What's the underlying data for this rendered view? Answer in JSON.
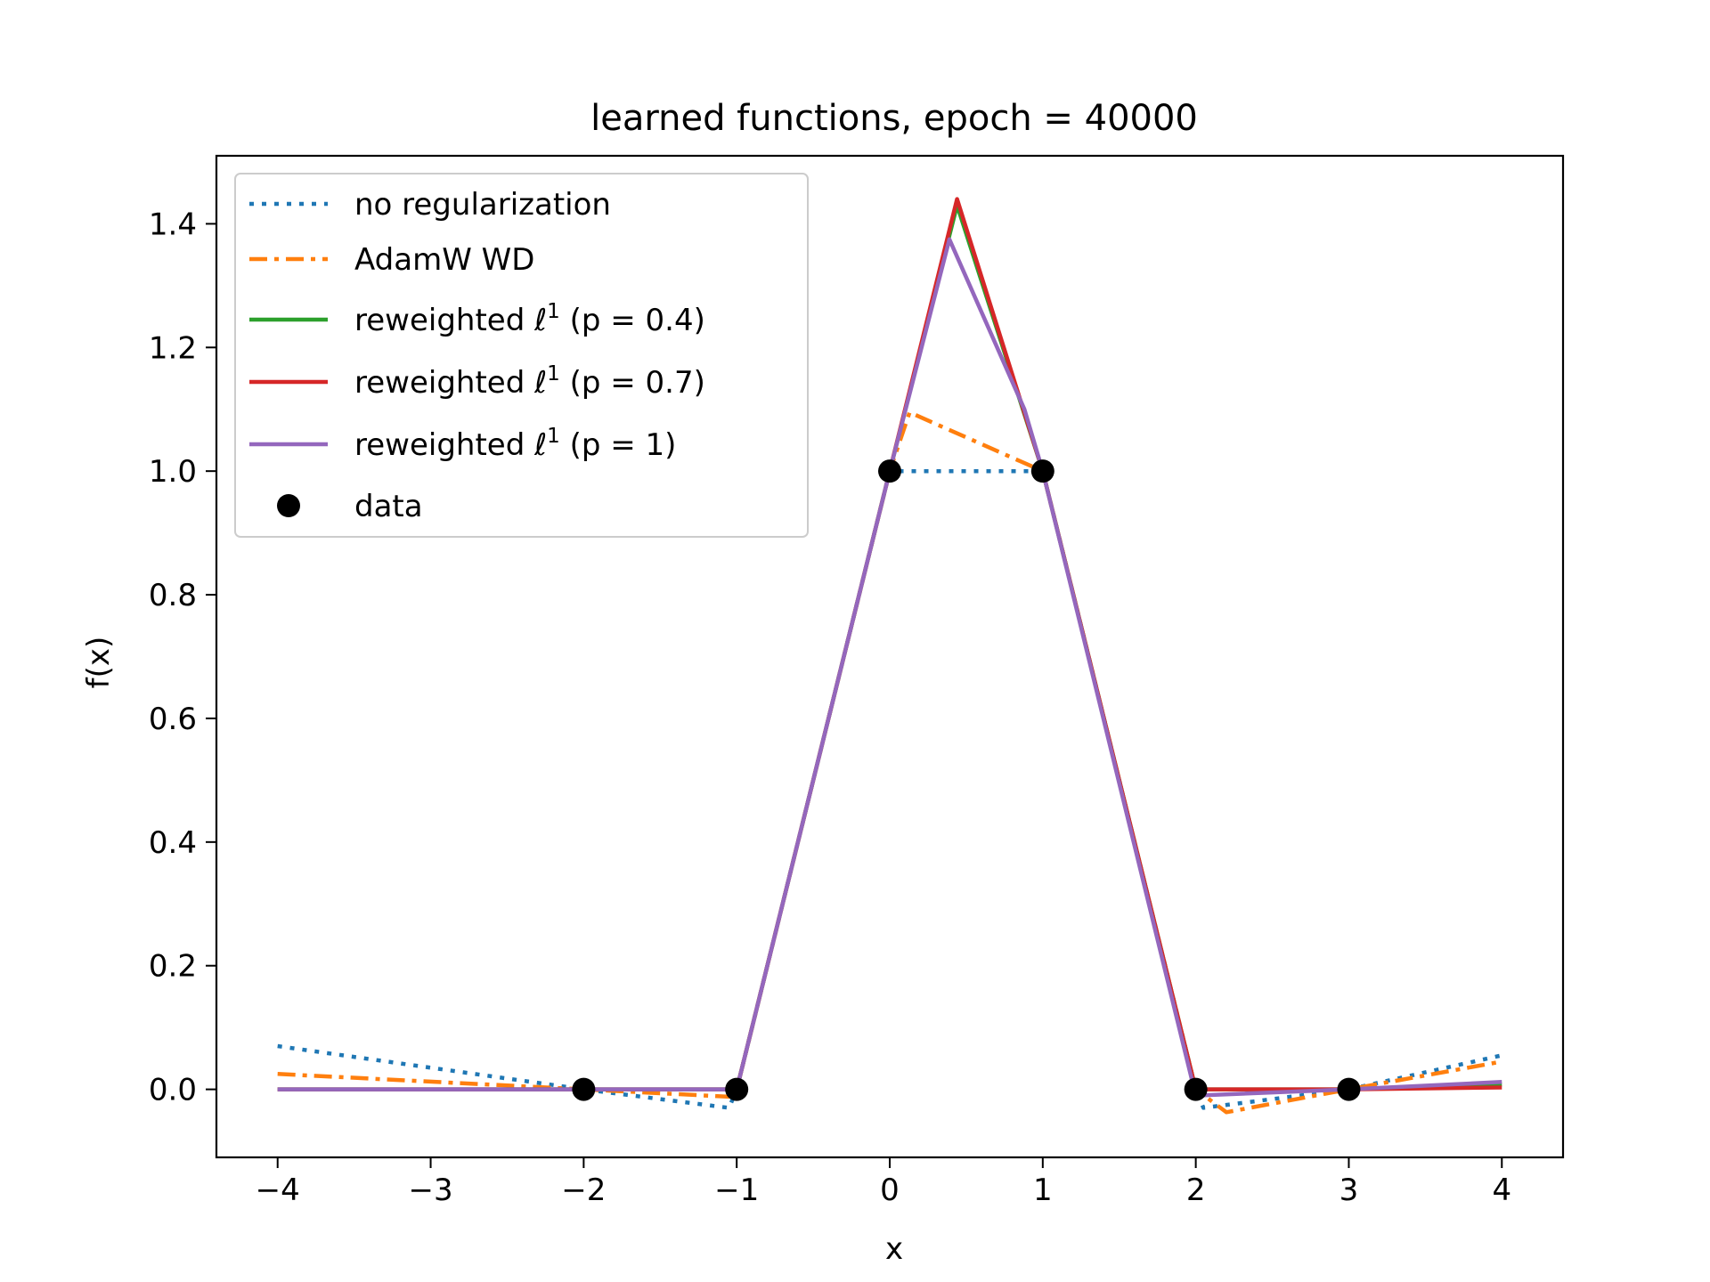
{
  "chart_data": {
    "type": "line",
    "title": "learned functions, epoch = 40000",
    "xlabel": "x",
    "ylabel": "f(x)",
    "xlim": [
      -4.4,
      4.4
    ],
    "ylim": [
      -0.11,
      1.51
    ],
    "xticks": [
      -4,
      -3,
      -2,
      -1,
      0,
      1,
      2,
      3,
      4
    ],
    "xtick_labels": [
      "−4",
      "−3",
      "−2",
      "−1",
      "0",
      "1",
      "2",
      "3",
      "4"
    ],
    "yticks": [
      0.0,
      0.2,
      0.4,
      0.6,
      0.8,
      1.0,
      1.2,
      1.4
    ],
    "ytick_labels": [
      "0.0",
      "0.2",
      "0.4",
      "0.6",
      "0.8",
      "1.0",
      "1.2",
      "1.4"
    ],
    "grid": false,
    "legend_position": "top-left",
    "series": [
      {
        "name": "no regularization",
        "label_main": "no regularization",
        "label_sup": "",
        "label_tail": "",
        "color": "#1f77b4",
        "style": "dotted",
        "x": [
          -4,
          -2,
          -1.05,
          -1,
          0,
          1,
          2,
          2.05,
          3,
          4
        ],
        "y": [
          0.07,
          0.0,
          -0.03,
          0.0,
          1.0,
          1.0,
          0.0,
          -0.03,
          0.0,
          0.055
        ]
      },
      {
        "name": "AdamW WD",
        "label_main": "AdamW WD",
        "label_sup": "",
        "label_tail": "",
        "color": "#ff7f0e",
        "style": "dashdot",
        "x": [
          -4,
          -2,
          -1.05,
          -1,
          0,
          0.13,
          1,
          2,
          2.2,
          3,
          4
        ],
        "y": [
          0.025,
          0.0,
          -0.012,
          0.0,
          1.0,
          1.095,
          1.0,
          0.0,
          -0.037,
          0.0,
          0.045
        ]
      },
      {
        "name": "reweighted ℓ¹ (p = 0.4)",
        "label_main": "reweighted ℓ",
        "label_sup": "1",
        "label_tail": " (p = 0.4)",
        "color": "#2ca02c",
        "style": "solid",
        "x": [
          -4,
          -2,
          -1,
          0,
          0.44,
          1,
          2,
          3,
          4
        ],
        "y": [
          0.0,
          0.0,
          0.0,
          1.0,
          1.43,
          1.0,
          0.0,
          0.0,
          0.008
        ]
      },
      {
        "name": "reweighted ℓ¹ (p = 0.7)",
        "label_main": "reweighted ℓ",
        "label_sup": "1",
        "label_tail": " (p = 0.7)",
        "color": "#d62728",
        "style": "solid",
        "x": [
          -4,
          -2,
          -1,
          0,
          0.44,
          1,
          2,
          3,
          4
        ],
        "y": [
          0.0,
          0.0,
          0.0,
          1.0,
          1.44,
          1.0,
          0.0,
          0.0,
          0.003
        ]
      },
      {
        "name": "reweighted ℓ¹ (p = 1)",
        "label_main": "reweighted ℓ",
        "label_sup": "1",
        "label_tail": " (p = 1)",
        "color": "#9467bd",
        "style": "solid",
        "x": [
          -4,
          -2,
          -1,
          0,
          0.39,
          0.88,
          1,
          2,
          3,
          4
        ],
        "y": [
          0.0,
          0.0,
          0.0,
          1.0,
          1.375,
          1.1,
          1.0,
          -0.01,
          0.0,
          0.012
        ]
      }
    ],
    "data_points": {
      "name": "data",
      "color": "#000000",
      "x": [
        -2,
        -1,
        0,
        1,
        2,
        3
      ],
      "y": [
        0,
        0,
        1,
        1,
        0,
        0
      ]
    }
  }
}
